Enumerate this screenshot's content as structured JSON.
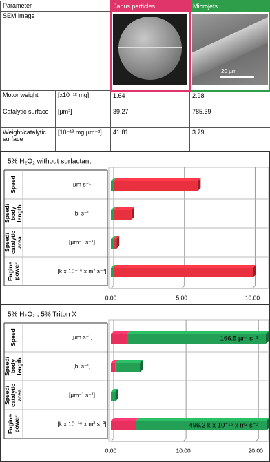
{
  "table": {
    "header": [
      "Parameter",
      "Janus particles",
      "Microjets"
    ],
    "image_row_label": "SEM image",
    "scale_bar": "20 µm",
    "rows": [
      [
        "Motor weight",
        "[x10⁻¹² mg]",
        "1.64",
        "2.98"
      ],
      [
        "Catalytic surface",
        "[µm²]",
        "39.27",
        "785.39"
      ],
      [
        "Weight/catalytic surface",
        "[10⁻¹³ mg µm⁻²]",
        "41.81",
        "3.79"
      ]
    ]
  },
  "chart_data": [
    {
      "type": "bar",
      "orientation": "horizontal",
      "stacked": true,
      "title": "5% H₂O₂ without surfactant",
      "categories": [
        "Speed",
        "Speed/ body length",
        "Speed/ catalytic area",
        "Engine power"
      ],
      "category_units": [
        "[µm s⁻¹]",
        "[bl s⁻¹]",
        "[µm⁻¹ s⁻¹]",
        "[k x 10⁻¹⁶ x m² s⁻³]"
      ],
      "series": [
        {
          "color": "#23a055",
          "values": [
            0.15,
            0.15,
            0.15,
            0.15
          ]
        },
        {
          "color": "#e8303f",
          "values": [
            6.0,
            1.3,
            0.25,
            9.9
          ]
        }
      ],
      "xlim": [
        0,
        11
      ],
      "xticks": [
        {
          "value": 0,
          "label": "0.00"
        },
        {
          "value": 5,
          "label": "5.00"
        },
        {
          "value": 10,
          "label": "10.00"
        }
      ],
      "grid": true
    },
    {
      "type": "bar",
      "orientation": "horizontal",
      "stacked": true,
      "title": "5% H₂O₂ , 5% Triton X",
      "categories": [
        "Speed",
        "Speed/ body length",
        "Speed/ catalytic area",
        "Engine power"
      ],
      "category_units": [
        "[µm s⁻¹]",
        "[bl s⁻¹]",
        "[µm⁻¹ s⁻¹]",
        "[k x 10⁻¹⁶ x m² s⁻³]"
      ],
      "series": [
        {
          "color": "#e8305f",
          "values": [
            2.2,
            0.6,
            0,
            3.5
          ]
        },
        {
          "color": "#23a055",
          "values": [
            19.2,
            3.4,
            0.6,
            18.0
          ]
        }
      ],
      "annotations": [
        "166.5 µm s⁻¹",
        null,
        null,
        "496.2 k x 10⁻¹⁶ x m² s⁻³"
      ],
      "xlim": [
        0,
        21.5
      ],
      "xticks": [
        {
          "value": 0,
          "label": "0.00"
        },
        {
          "value": 10,
          "label": "10.00"
        },
        {
          "value": 20,
          "label": "20.00"
        }
      ],
      "grid": true
    }
  ]
}
